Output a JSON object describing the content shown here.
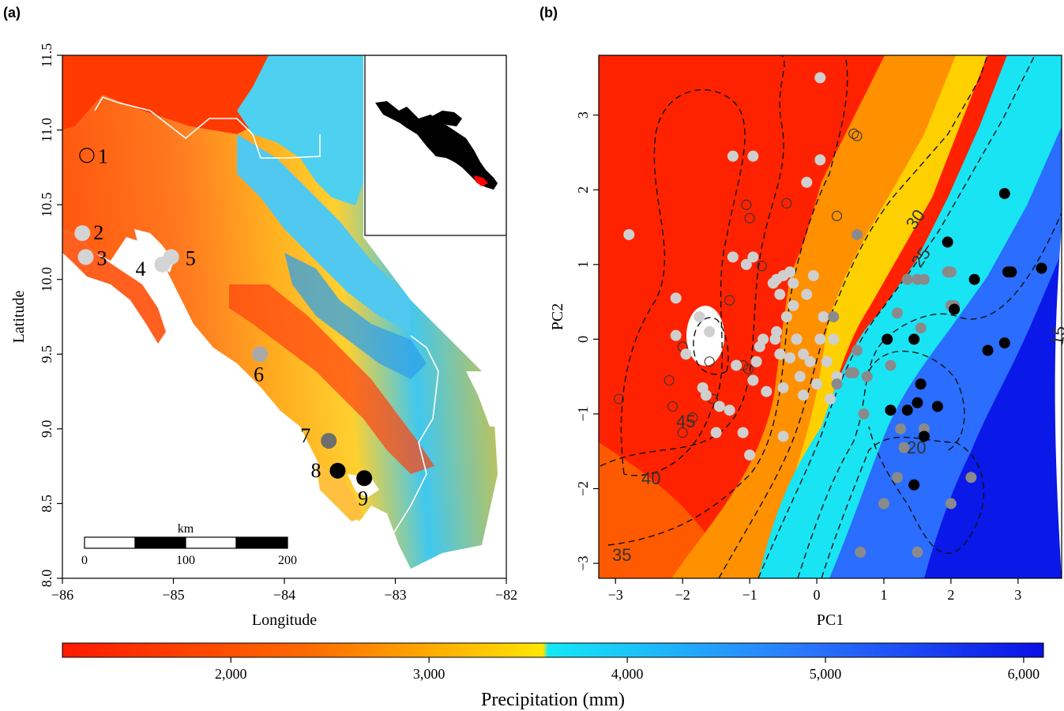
{
  "panels": {
    "a": "(a)",
    "b": "(b)"
  },
  "colors": {
    "red": "#ff2a00",
    "orange": "#ff8a00",
    "yellow": "#ffe000",
    "cyan": "#18e6f4",
    "blue": "#2f6bff",
    "darkblue": "#0a1ee8",
    "point_black": "#000000",
    "point_dark_grey": "#7a7a7a",
    "point_light_grey": "#cfcfcf"
  },
  "chart_data": [
    {
      "type": "scatter",
      "panel": "a",
      "xlabel": "Longitude",
      "ylabel": "Latitude",
      "xlim": [
        -86,
        -82
      ],
      "ylim": [
        8.0,
        11.5
      ],
      "xticks": [
        "−86",
        "−85",
        "−84",
        "−83",
        "−82"
      ],
      "xtick_values": [
        -86,
        -85,
        -84,
        -83,
        -82
      ],
      "yticks": [
        "8.0",
        "8.5",
        "9.0",
        "9.5",
        "10.0",
        "10.5",
        "11.0",
        "11.5"
      ],
      "ytick_values": [
        8.0,
        8.5,
        9.0,
        9.5,
        10.0,
        10.5,
        11.0,
        11.5
      ],
      "sites": [
        {
          "label": "1",
          "lon": -85.78,
          "lat": 10.83,
          "shade": "open"
        },
        {
          "label": "2",
          "lon": -85.82,
          "lat": 10.31,
          "shade": "light"
        },
        {
          "label": "3",
          "lon": -85.79,
          "lat": 10.15,
          "shade": "light"
        },
        {
          "label": "4",
          "lon": -85.1,
          "lat": 10.1,
          "shade": "light"
        },
        {
          "label": "5",
          "lon": -85.02,
          "lat": 10.15,
          "shade": "light"
        },
        {
          "label": "6",
          "lon": -84.22,
          "lat": 9.5,
          "shade": "mid"
        },
        {
          "label": "7",
          "lon": -83.6,
          "lat": 8.92,
          "shade": "dark"
        },
        {
          "label": "8",
          "lon": -83.52,
          "lat": 8.72,
          "shade": "black"
        },
        {
          "label": "9",
          "lon": -83.28,
          "lat": 8.67,
          "shade": "black"
        }
      ],
      "scale_bar": {
        "unit": "km",
        "ticks": [
          "0",
          "100",
          "200"
        ]
      }
    },
    {
      "type": "scatter",
      "panel": "b",
      "xlabel": "PC1",
      "ylabel": "PC2",
      "xlim": [
        -3.25,
        3.65
      ],
      "ylim": [
        -3.2,
        3.8
      ],
      "xticks": [
        "−3",
        "−2",
        "−1",
        "0",
        "1",
        "2",
        "3"
      ],
      "xtick_values": [
        -3,
        -2,
        -1,
        0,
        1,
        2,
        3
      ],
      "yticks": [
        "−3",
        "−2",
        "−1",
        "0",
        "1",
        "2",
        "3"
      ],
      "ytick_values": [
        -3,
        -2,
        -1,
        0,
        1,
        2,
        3
      ],
      "contour_labels": [
        "45",
        "40",
        "35",
        "30",
        "25",
        "20",
        "15"
      ],
      "points_open": [
        [
          -2.95,
          -0.8
        ],
        [
          -2.2,
          -0.55
        ],
        [
          -2.15,
          -0.9
        ],
        [
          -2.0,
          -1.25
        ],
        [
          -2.0,
          -0.1
        ],
        [
          -1.85,
          -1.05
        ],
        [
          -1.6,
          -0.3
        ],
        [
          -1.55,
          -0.8
        ],
        [
          -1.3,
          0.52
        ],
        [
          -1.1,
          -0.35
        ],
        [
          -1.02,
          -0.4
        ],
        [
          -1.05,
          1.8
        ],
        [
          -1.0,
          1.62
        ],
        [
          -0.82,
          0.98
        ],
        [
          -0.45,
          1.82
        ],
        [
          0.3,
          1.65
        ],
        [
          0.55,
          2.75
        ],
        [
          0.6,
          2.72
        ]
      ],
      "points_light": [
        [
          -2.8,
          1.4
        ],
        [
          -2.1,
          0.55
        ],
        [
          -2.1,
          0.05
        ],
        [
          -1.95,
          -0.2
        ],
        [
          -1.75,
          0.3
        ],
        [
          -1.6,
          0.1
        ],
        [
          -1.7,
          -0.65
        ],
        [
          -1.65,
          -0.75
        ],
        [
          -1.5,
          -1.25
        ],
        [
          -1.45,
          -0.9
        ],
        [
          -1.3,
          -0.95
        ],
        [
          -1.25,
          1.1
        ],
        [
          -1.2,
          -0.35
        ],
        [
          -1.1,
          -1.25
        ],
        [
          -1.05,
          1.0
        ],
        [
          -0.95,
          1.1
        ],
        [
          -0.95,
          -0.55
        ],
        [
          -0.9,
          -0.3
        ],
        [
          -0.85,
          -0.1
        ],
        [
          -0.8,
          0.0
        ],
        [
          -0.75,
          -0.7
        ],
        [
          -0.65,
          0.75
        ],
        [
          -0.62,
          0.0
        ],
        [
          -0.6,
          0.1
        ],
        [
          -0.55,
          -0.2
        ],
        [
          -0.55,
          0.6
        ],
        [
          -0.5,
          0.85
        ],
        [
          -0.45,
          0.3
        ],
        [
          -0.4,
          0.9
        ],
        [
          -0.4,
          -0.25
        ],
        [
          -0.35,
          0.75
        ],
        [
          -0.35,
          0.45
        ],
        [
          -0.3,
          0.0
        ],
        [
          -0.25,
          -0.5
        ],
        [
          -0.2,
          -0.2
        ],
        [
          -0.15,
          0.6
        ],
        [
          -0.1,
          -0.3
        ],
        [
          -0.05,
          0.85
        ],
        [
          0.0,
          -0.6
        ],
        [
          0.05,
          0.0
        ],
        [
          0.1,
          0.3
        ],
        [
          0.15,
          -0.3
        ],
        [
          0.2,
          -0.8
        ],
        [
          0.25,
          0.0
        ],
        [
          0.3,
          -0.5
        ],
        [
          -0.6,
          0.8
        ],
        [
          -0.95,
          2.45
        ],
        [
          -1.25,
          2.45
        ],
        [
          -0.15,
          2.1
        ],
        [
          0.05,
          2.4
        ],
        [
          0.05,
          3.5
        ],
        [
          -1.0,
          -1.55
        ],
        [
          -0.5,
          -1.3
        ],
        [
          -0.5,
          -0.65
        ],
        [
          -0.3,
          0.0
        ],
        [
          -0.2,
          -0.75
        ]
      ],
      "points_mid": [
        [
          0.6,
          1.4
        ],
        [
          0.3,
          -0.6
        ],
        [
          0.5,
          -0.45
        ],
        [
          0.55,
          -0.45
        ],
        [
          0.6,
          -0.15
        ],
        [
          0.7,
          -1.0
        ],
        [
          0.75,
          -0.5
        ],
        [
          0.65,
          -2.85
        ],
        [
          1.0,
          -2.2
        ],
        [
          1.2,
          -1.85
        ],
        [
          1.25,
          -1.2
        ],
        [
          1.3,
          -1.45
        ],
        [
          1.35,
          0.8
        ],
        [
          1.5,
          0.8
        ],
        [
          1.55,
          0.15
        ],
        [
          1.6,
          0.8
        ],
        [
          1.6,
          -1.2
        ],
        [
          1.8,
          -0.9
        ],
        [
          1.95,
          0.9
        ],
        [
          2.0,
          0.9
        ],
        [
          2.0,
          0.45
        ],
        [
          2.05,
          0.45
        ],
        [
          2.0,
          -2.2
        ],
        [
          2.3,
          -1.85
        ],
        [
          1.5,
          -2.85
        ],
        [
          1.1,
          -0.35
        ],
        [
          1.2,
          0.35
        ],
        [
          0.25,
          0.3
        ]
      ],
      "points_black": [
        [
          1.05,
          0.0
        ],
        [
          1.1,
          -0.95
        ],
        [
          1.35,
          -0.95
        ],
        [
          1.45,
          0.0
        ],
        [
          1.5,
          -0.85
        ],
        [
          1.55,
          -0.6
        ],
        [
          1.6,
          -1.3
        ],
        [
          1.8,
          -0.9
        ],
        [
          1.95,
          1.3
        ],
        [
          2.05,
          0.4
        ],
        [
          2.35,
          0.8
        ],
        [
          2.55,
          -0.15
        ],
        [
          2.8,
          -0.05
        ],
        [
          2.8,
          1.95
        ],
        [
          2.85,
          0.9
        ],
        [
          2.9,
          0.9
        ],
        [
          3.35,
          0.95
        ],
        [
          1.45,
          -1.95
        ]
      ]
    }
  ],
  "colorbar": {
    "title": "Precipitation (mm)",
    "range": [
      1150,
      6100
    ],
    "ticks": [
      "2,000",
      "3,000",
      "4,000",
      "5,000",
      "6,000"
    ],
    "tick_values": [
      2000,
      3000,
      4000,
      5000,
      6000
    ]
  }
}
